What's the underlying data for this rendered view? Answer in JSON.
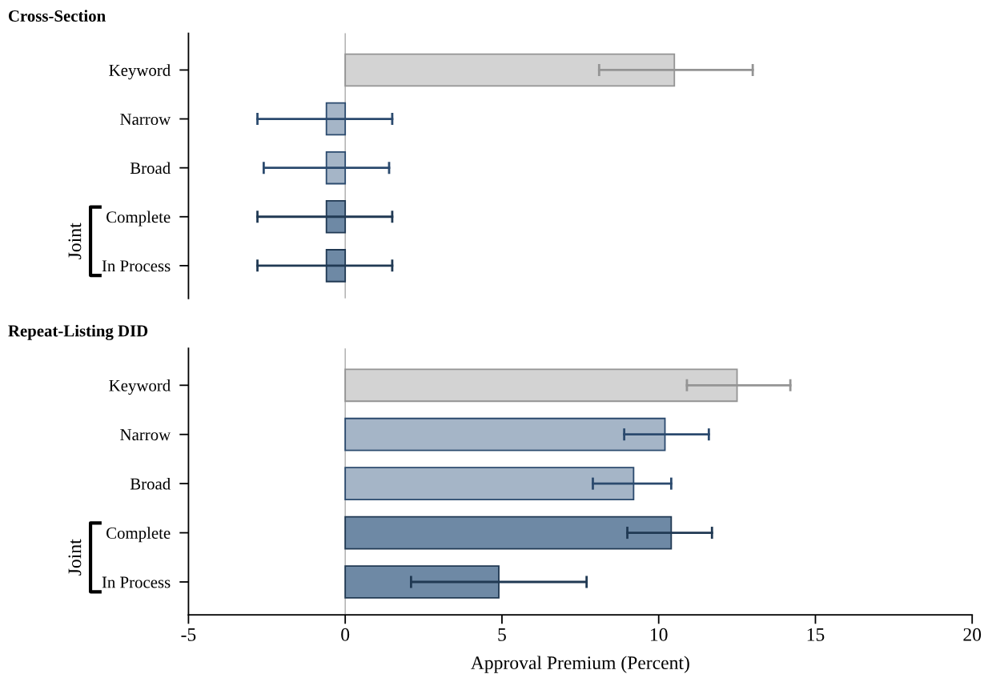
{
  "chart_data": [
    {
      "type": "bar",
      "orientation": "horizontal",
      "title": "Cross-Section",
      "categories": [
        "Keyword",
        "Narrow",
        "Broad",
        "Complete",
        "In Process"
      ],
      "values": [
        10.5,
        -0.6,
        -0.6,
        -0.6,
        -0.6
      ],
      "errors": [
        [
          8.1,
          13.0
        ],
        [
          -2.8,
          1.5
        ],
        [
          -2.6,
          1.4
        ],
        [
          -2.8,
          1.5
        ],
        [
          -2.8,
          1.5
        ]
      ],
      "colors": [
        "#d3d3d3",
        "#a5b5c7",
        "#a5b5c7",
        "#6e89a5",
        "#6e89a5"
      ],
      "xlim": [
        -5,
        20
      ],
      "tick_labels": "y",
      "grid": false,
      "legend": false,
      "ref_lines": [
        {
          "axis": "x",
          "value": 0,
          "color": "#aaaaaa"
        }
      ],
      "annotations": [
        "Joint"
      ]
    },
    {
      "type": "bar",
      "orientation": "horizontal",
      "title": "Repeat-Listing DID",
      "categories": [
        "Keyword",
        "Narrow",
        "Broad",
        "Complete",
        "In Process"
      ],
      "values": [
        12.5,
        10.2,
        9.2,
        10.4,
        4.9
      ],
      "errors": [
        [
          10.9,
          14.2
        ],
        [
          8.9,
          11.6
        ],
        [
          7.9,
          10.4
        ],
        [
          9.0,
          11.7
        ],
        [
          2.1,
          7.7
        ]
      ],
      "colors": [
        "#d3d3d3",
        "#a5b5c7",
        "#a5b5c7",
        "#6e89a5",
        "#6e89a5"
      ],
      "xlim": [
        -5,
        20
      ],
      "xticks": [
        -5,
        0,
        5,
        10,
        15,
        20
      ],
      "xlabel": "Approval Premium (Percent)",
      "grid": false,
      "legend": false,
      "ref_lines": [
        {
          "axis": "x",
          "value": 0,
          "color": "#aaaaaa"
        }
      ],
      "annotations": [
        "Joint"
      ]
    }
  ]
}
